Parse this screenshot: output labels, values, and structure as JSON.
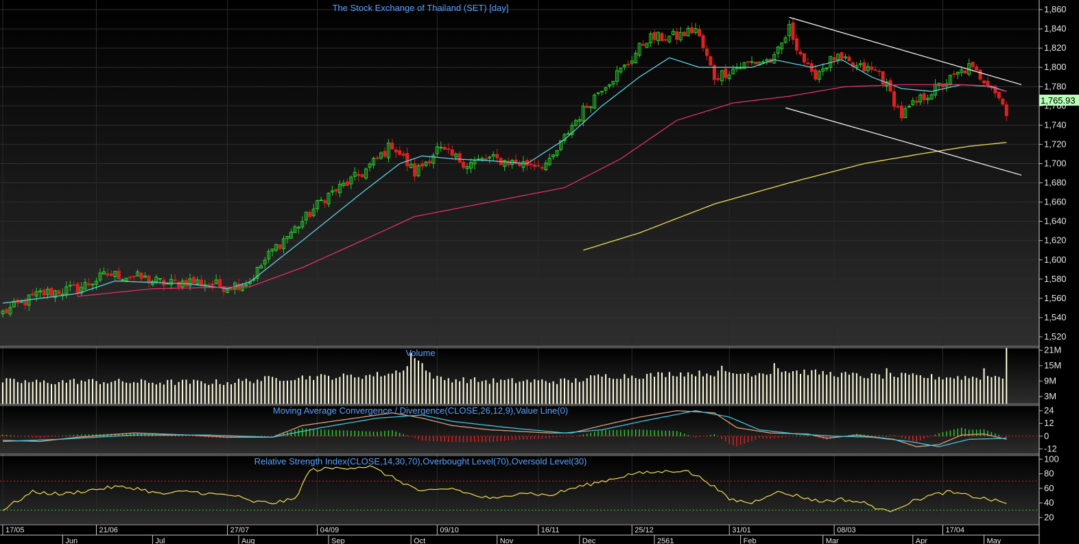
{
  "chart_data": [
    {
      "type": "candlestick",
      "title": "The Stock Exchange of Thailand (SET) [day]",
      "ylim": [
        1510,
        1870
      ],
      "yticks": [
        "1,860",
        "1,840",
        "1,820",
        "1,800",
        "1,780",
        "1,760",
        "1,740",
        "1,720",
        "1,700",
        "1,680",
        "1,660",
        "1,640",
        "1,620",
        "1,600",
        "1,580",
        "1,560",
        "1,540",
        "1,520"
      ],
      "last_price_label": "1,765.93",
      "x_major_labels": [
        "17/05",
        "21/06",
        "27/07",
        "04/09",
        "09/10",
        "16/11",
        "25/12",
        "31/01",
        "08/03",
        "17/04"
      ],
      "x_month_labels": [
        "Jun",
        "Jul",
        "Aug",
        "Sep",
        "Oct",
        "Nov",
        "Dec",
        "2561",
        "Feb",
        "Mar",
        "Apr",
        "May"
      ],
      "anchors": [
        [
          0,
          1545
        ],
        [
          10,
          1565
        ],
        [
          20,
          1570
        ],
        [
          28,
          1585
        ],
        [
          36,
          1582
        ],
        [
          44,
          1575
        ],
        [
          50,
          1578
        ],
        [
          60,
          1572
        ],
        [
          66,
          1578
        ],
        [
          72,
          1610
        ],
        [
          80,
          1640
        ],
        [
          86,
          1665
        ],
        [
          96,
          1690
        ],
        [
          104,
          1720
        ],
        [
          110,
          1690
        ],
        [
          116,
          1715
        ],
        [
          124,
          1700
        ],
        [
          130,
          1705
        ],
        [
          138,
          1700
        ],
        [
          146,
          1700
        ],
        [
          152,
          1740
        ],
        [
          160,
          1780
        ],
        [
          166,
          1800
        ],
        [
          172,
          1830
        ],
        [
          180,
          1832
        ],
        [
          185,
          1840
        ],
        [
          190,
          1790
        ],
        [
          196,
          1800
        ],
        [
          200,
          1805
        ],
        [
          206,
          1808
        ],
        [
          210,
          1840
        ],
        [
          216,
          1790
        ],
        [
          222,
          1810
        ],
        [
          228,
          1800
        ],
        [
          234,
          1795
        ],
        [
          240,
          1750
        ],
        [
          246,
          1770
        ],
        [
          252,
          1785
        ],
        [
          258,
          1800
        ],
        [
          264,
          1782
        ],
        [
          268,
          1755
        ]
      ],
      "ma_short_anchors": [
        [
          0,
          1555
        ],
        [
          20,
          1565
        ],
        [
          30,
          1578
        ],
        [
          50,
          1575
        ],
        [
          60,
          1570
        ],
        [
          66,
          1577
        ],
        [
          80,
          1620
        ],
        [
          96,
          1670
        ],
        [
          106,
          1700
        ],
        [
          112,
          1708
        ],
        [
          120,
          1705
        ],
        [
          130,
          1703
        ],
        [
          140,
          1700
        ],
        [
          150,
          1725
        ],
        [
          160,
          1760
        ],
        [
          170,
          1790
        ],
        [
          178,
          1810
        ],
        [
          186,
          1800
        ],
        [
          200,
          1800
        ],
        [
          206,
          1808
        ],
        [
          216,
          1800
        ],
        [
          224,
          1808
        ],
        [
          232,
          1790
        ],
        [
          240,
          1778
        ],
        [
          248,
          1775
        ],
        [
          256,
          1782
        ],
        [
          264,
          1780
        ],
        [
          268,
          1775
        ]
      ],
      "ma_mid_anchors": [
        [
          20,
          1562
        ],
        [
          40,
          1570
        ],
        [
          66,
          1572
        ],
        [
          80,
          1592
        ],
        [
          96,
          1620
        ],
        [
          110,
          1645
        ],
        [
          130,
          1660
        ],
        [
          150,
          1675
        ],
        [
          165,
          1705
        ],
        [
          180,
          1745
        ],
        [
          195,
          1763
        ],
        [
          210,
          1770
        ],
        [
          225,
          1780
        ],
        [
          240,
          1782
        ],
        [
          255,
          1782
        ],
        [
          262,
          1781
        ],
        [
          268,
          1775
        ]
      ],
      "ma_long_anchors": [
        [
          155,
          1610
        ],
        [
          170,
          1628
        ],
        [
          190,
          1658
        ],
        [
          210,
          1680
        ],
        [
          230,
          1700
        ],
        [
          245,
          1710
        ],
        [
          258,
          1718
        ],
        [
          268,
          1722
        ]
      ],
      "trendlines": [
        {
          "from": [
            210,
            1852
          ],
          "to": [
            272,
            1782
          ]
        },
        {
          "from": [
            209,
            1758
          ],
          "to": [
            272,
            1688
          ]
        }
      ],
      "colors": {
        "up": "#2ccc2c",
        "down": "#dd2020",
        "ma_short": "#5fd0e0",
        "ma_mid": "#e0306a",
        "ma_long": "#f0e050",
        "trend": "#ffffff"
      }
    },
    {
      "type": "bar",
      "title": "Volume",
      "yticks": [
        "21M",
        "15M",
        "9M",
        "3M"
      ],
      "ylim": [
        0,
        22
      ],
      "vol_anchors": [
        [
          0,
          9
        ],
        [
          10,
          8.5
        ],
        [
          20,
          9
        ],
        [
          40,
          8.5
        ],
        [
          60,
          8.5
        ],
        [
          72,
          10
        ],
        [
          80,
          10.5
        ],
        [
          96,
          11
        ],
        [
          104,
          12
        ],
        [
          110,
          16
        ],
        [
          116,
          10
        ],
        [
          130,
          9
        ],
        [
          146,
          9
        ],
        [
          152,
          9
        ],
        [
          160,
          11
        ],
        [
          170,
          11
        ],
        [
          180,
          12
        ],
        [
          190,
          12
        ],
        [
          200,
          12
        ],
        [
          210,
          13
        ],
        [
          220,
          12
        ],
        [
          230,
          11
        ],
        [
          240,
          11
        ],
        [
          250,
          10.5
        ],
        [
          260,
          10.5
        ],
        [
          268,
          11
        ]
      ],
      "vol_spikes": [
        [
          109,
          20
        ],
        [
          110,
          18
        ],
        [
          111,
          17
        ],
        [
          112,
          16
        ],
        [
          192,
          15
        ],
        [
          206,
          16
        ],
        [
          207,
          14
        ],
        [
          236,
          14
        ],
        [
          262,
          14
        ],
        [
          268,
          22
        ]
      ],
      "colors": {
        "bar": "#ffffe0"
      }
    },
    {
      "type": "line",
      "title": "Moving Average Convergence / Divergence(CLOSE,26,12,9),Value Line(0)",
      "yticks": [
        "24",
        "12",
        "0",
        "-12"
      ],
      "ylim": [
        -17,
        29
      ],
      "macd_anchors": [
        [
          0,
          -4
        ],
        [
          10,
          -5
        ],
        [
          20,
          -1
        ],
        [
          35,
          3
        ],
        [
          50,
          1
        ],
        [
          60,
          -1
        ],
        [
          72,
          -1
        ],
        [
          80,
          10
        ],
        [
          96,
          18
        ],
        [
          104,
          22
        ],
        [
          112,
          17
        ],
        [
          120,
          10
        ],
        [
          130,
          6
        ],
        [
          146,
          3
        ],
        [
          152,
          3
        ],
        [
          160,
          10
        ],
        [
          170,
          18
        ],
        [
          180,
          24
        ],
        [
          190,
          22
        ],
        [
          196,
          8
        ],
        [
          205,
          3
        ],
        [
          215,
          2
        ],
        [
          220,
          -2
        ],
        [
          228,
          1
        ],
        [
          238,
          -3
        ],
        [
          244,
          -10
        ],
        [
          250,
          -8
        ],
        [
          256,
          1
        ],
        [
          262,
          2
        ],
        [
          268,
          -3
        ]
      ],
      "signal_anchors": [
        [
          0,
          -5
        ],
        [
          15,
          -3
        ],
        [
          35,
          1
        ],
        [
          55,
          1
        ],
        [
          72,
          -1
        ],
        [
          85,
          8
        ],
        [
          100,
          17
        ],
        [
          112,
          20
        ],
        [
          120,
          14
        ],
        [
          135,
          8
        ],
        [
          150,
          3
        ],
        [
          160,
          6
        ],
        [
          172,
          15
        ],
        [
          185,
          24
        ],
        [
          194,
          18
        ],
        [
          202,
          6
        ],
        [
          212,
          2
        ],
        [
          222,
          0
        ],
        [
          232,
          -1
        ],
        [
          242,
          -5
        ],
        [
          250,
          -10
        ],
        [
          258,
          -3
        ],
        [
          268,
          -2
        ]
      ],
      "colors": {
        "macd": "#d8a080",
        "signal": "#3ec8e0",
        "zero": "#dd2020",
        "hist_up": "#2ccc2c",
        "hist_down": "#dd2020"
      }
    },
    {
      "type": "line",
      "title": "Relative Strength Index(CLOSE,14,30,70),Overbought Level(70),Oversold Level(30)",
      "yticks": [
        "100",
        "80",
        "60",
        "40",
        "20"
      ],
      "ylim": [
        10,
        105
      ],
      "overbought": 70,
      "oversold": 30,
      "rsi_anchors": [
        [
          0,
          30
        ],
        [
          3,
          40
        ],
        [
          8,
          55
        ],
        [
          16,
          52
        ],
        [
          24,
          58
        ],
        [
          30,
          62
        ],
        [
          36,
          60
        ],
        [
          42,
          52
        ],
        [
          50,
          56
        ],
        [
          56,
          52
        ],
        [
          62,
          50
        ],
        [
          66,
          42
        ],
        [
          72,
          40
        ],
        [
          78,
          45
        ],
        [
          82,
          85
        ],
        [
          90,
          88
        ],
        [
          98,
          90
        ],
        [
          104,
          75
        ],
        [
          112,
          55
        ],
        [
          120,
          60
        ],
        [
          126,
          50
        ],
        [
          132,
          45
        ],
        [
          138,
          55
        ],
        [
          146,
          50
        ],
        [
          152,
          60
        ],
        [
          162,
          72
        ],
        [
          168,
          80
        ],
        [
          174,
          82
        ],
        [
          182,
          85
        ],
        [
          188,
          70
        ],
        [
          194,
          45
        ],
        [
          200,
          40
        ],
        [
          206,
          55
        ],
        [
          212,
          50
        ],
        [
          218,
          42
        ],
        [
          224,
          45
        ],
        [
          230,
          40
        ],
        [
          236,
          28
        ],
        [
          242,
          40
        ],
        [
          246,
          48
        ],
        [
          252,
          55
        ],
        [
          258,
          50
        ],
        [
          264,
          44
        ],
        [
          268,
          40
        ]
      ],
      "colors": {
        "rsi": "#f0e050",
        "overbought": "#dd2020",
        "oversold": "#2ccc2c"
      }
    }
  ]
}
